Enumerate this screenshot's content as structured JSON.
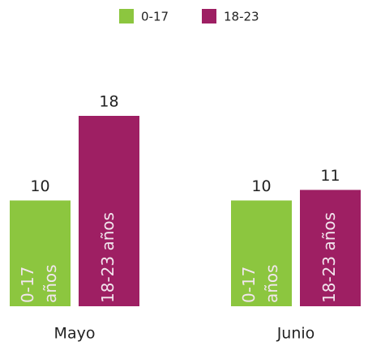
{
  "chart_data": {
    "type": "bar",
    "categories": [
      "Mayo",
      "Junio"
    ],
    "series": [
      {
        "name": "0-17",
        "color": "#8cc63f",
        "values": [
          10,
          10
        ],
        "inner_label": [
          "0-17",
          "años"
        ]
      },
      {
        "name": "18-23",
        "color": "#9e1f63",
        "values": [
          18,
          11
        ],
        "inner_label": [
          "18-23 años"
        ]
      }
    ],
    "legend": "top"
  }
}
